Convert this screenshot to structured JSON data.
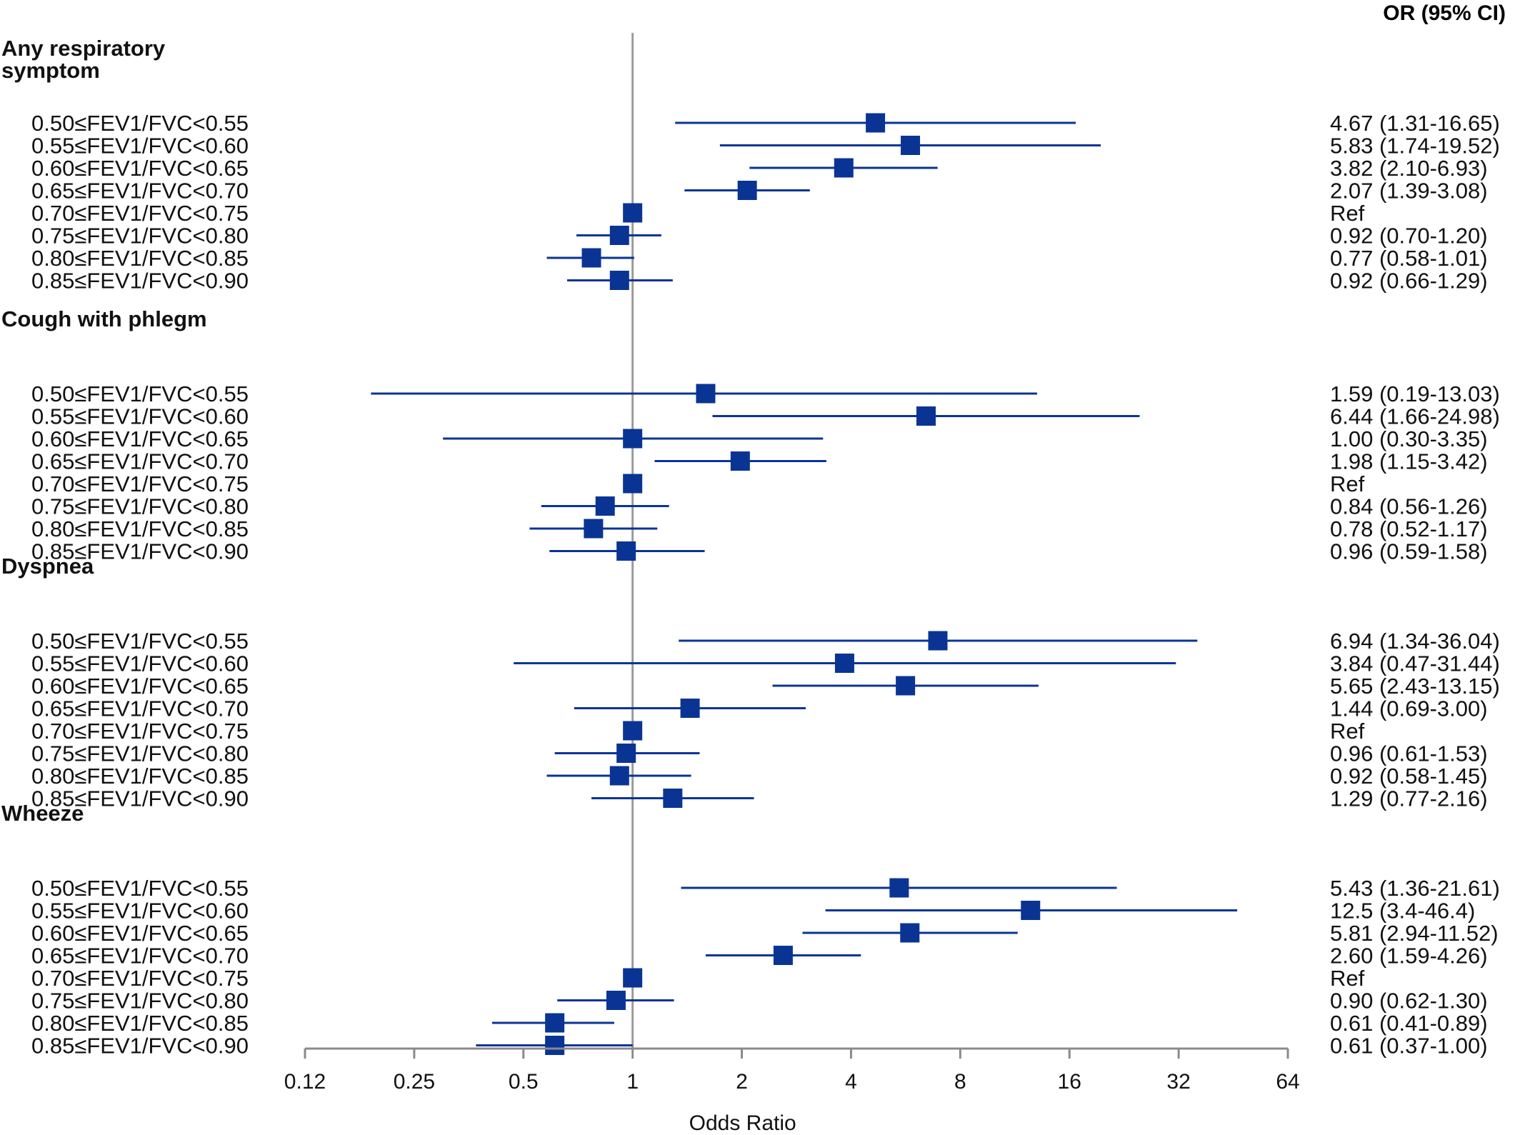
{
  "chart_data": {
    "type": "forest",
    "xlabel": "Odds Ratio",
    "x_scale": "log2",
    "xlim": [
      0.12,
      64
    ],
    "x_ticks": [
      {
        "value": 0.125,
        "label": "0.12"
      },
      {
        "value": 0.25,
        "label": "0.25"
      },
      {
        "value": 0.5,
        "label": "0.5"
      },
      {
        "value": 1,
        "label": "1"
      },
      {
        "value": 2,
        "label": "2"
      },
      {
        "value": 4,
        "label": "4"
      },
      {
        "value": 8,
        "label": "8"
      },
      {
        "value": 16,
        "label": "16"
      },
      {
        "value": 32,
        "label": "32"
      },
      {
        "value": 64,
        "label": "64"
      }
    ],
    "reference_line": 1,
    "estimate_header": "OR (95% CI)",
    "marker_color": "#0a3494",
    "reference_line_color": "#9a9a9a",
    "groups": [
      {
        "title_lines": [
          "Any respiratory",
          "symptom"
        ],
        "rows": [
          {
            "label": "0.50≤FEV1/FVC<0.55",
            "or": 4.67,
            "lo": 1.31,
            "hi": 16.65,
            "text": "4.67 (1.31-16.65)"
          },
          {
            "label": "0.55≤FEV1/FVC<0.60",
            "or": 5.83,
            "lo": 1.74,
            "hi": 19.52,
            "text": "5.83 (1.74-19.52)"
          },
          {
            "label": "0.60≤FEV1/FVC<0.65",
            "or": 3.82,
            "lo": 2.1,
            "hi": 6.93,
            "text": "3.82 (2.10-6.93)"
          },
          {
            "label": "0.65≤FEV1/FVC<0.70",
            "or": 2.07,
            "lo": 1.39,
            "hi": 3.08,
            "text": "2.07 (1.39-3.08)"
          },
          {
            "label": "0.70≤FEV1/FVC<0.75",
            "or": 1,
            "lo": null,
            "hi": null,
            "text": "Ref"
          },
          {
            "label": "0.75≤FEV1/FVC<0.80",
            "or": 0.92,
            "lo": 0.7,
            "hi": 1.2,
            "text": "0.92 (0.70-1.20)"
          },
          {
            "label": "0.80≤FEV1/FVC<0.85",
            "or": 0.77,
            "lo": 0.58,
            "hi": 1.01,
            "text": "0.77 (0.58-1.01)"
          },
          {
            "label": "0.85≤FEV1/FVC<0.90",
            "or": 0.92,
            "lo": 0.66,
            "hi": 1.29,
            "text": "0.92 (0.66-1.29)"
          }
        ]
      },
      {
        "title_lines": [
          "Cough with phlegm"
        ],
        "rows": [
          {
            "label": "0.50≤FEV1/FVC<0.55",
            "or": 1.59,
            "lo": 0.19,
            "hi": 13.03,
            "text": "1.59 (0.19-13.03)"
          },
          {
            "label": "0.55≤FEV1/FVC<0.60",
            "or": 6.44,
            "lo": 1.66,
            "hi": 24.98,
            "text": "6.44 (1.66-24.98)"
          },
          {
            "label": "0.60≤FEV1/FVC<0.65",
            "or": 1.0,
            "lo": 0.3,
            "hi": 3.35,
            "text": "1.00 (0.30-3.35)"
          },
          {
            "label": "0.65≤FEV1/FVC<0.70",
            "or": 1.98,
            "lo": 1.15,
            "hi": 3.42,
            "text": "1.98 (1.15-3.42)"
          },
          {
            "label": "0.70≤FEV1/FVC<0.75",
            "or": 1,
            "lo": null,
            "hi": null,
            "text": "Ref"
          },
          {
            "label": "0.75≤FEV1/FVC<0.80",
            "or": 0.84,
            "lo": 0.56,
            "hi": 1.26,
            "text": "0.84 (0.56-1.26)"
          },
          {
            "label": "0.80≤FEV1/FVC<0.85",
            "or": 0.78,
            "lo": 0.52,
            "hi": 1.17,
            "text": "0.78 (0.52-1.17)"
          },
          {
            "label": "0.85≤FEV1/FVC<0.90",
            "or": 0.96,
            "lo": 0.59,
            "hi": 1.58,
            "text": "0.96 (0.59-1.58)"
          }
        ]
      },
      {
        "title_lines": [
          "Dyspnea"
        ],
        "rows": [
          {
            "label": "0.50≤FEV1/FVC<0.55",
            "or": 6.94,
            "lo": 1.34,
            "hi": 36.04,
            "text": "6.94 (1.34-36.04)"
          },
          {
            "label": "0.55≤FEV1/FVC<0.60",
            "or": 3.84,
            "lo": 0.47,
            "hi": 31.44,
            "text": "3.84 (0.47-31.44)"
          },
          {
            "label": "0.60≤FEV1/FVC<0.65",
            "or": 5.65,
            "lo": 2.43,
            "hi": 13.15,
            "text": "5.65 (2.43-13.15)"
          },
          {
            "label": "0.65≤FEV1/FVC<0.70",
            "or": 1.44,
            "lo": 0.69,
            "hi": 3.0,
            "text": "1.44 (0.69-3.00)"
          },
          {
            "label": "0.70≤FEV1/FVC<0.75",
            "or": 1,
            "lo": null,
            "hi": null,
            "text": "Ref"
          },
          {
            "label": "0.75≤FEV1/FVC<0.80",
            "or": 0.96,
            "lo": 0.61,
            "hi": 1.53,
            "text": "0.96 (0.61-1.53)"
          },
          {
            "label": "0.80≤FEV1/FVC<0.85",
            "or": 0.92,
            "lo": 0.58,
            "hi": 1.45,
            "text": "0.92 (0.58-1.45)"
          },
          {
            "label": "0.85≤FEV1/FVC<0.90",
            "or": 1.29,
            "lo": 0.77,
            "hi": 2.16,
            "text": "1.29 (0.77-2.16)"
          }
        ]
      },
      {
        "title_lines": [
          "Wheeze"
        ],
        "rows": [
          {
            "label": "0.50≤FEV1/FVC<0.55",
            "or": 5.43,
            "lo": 1.36,
            "hi": 21.61,
            "text": "5.43 (1.36-21.61)"
          },
          {
            "label": "0.55≤FEV1/FVC<0.60",
            "or": 12.5,
            "lo": 3.4,
            "hi": 46.4,
            "text": "12.5 (3.4-46.4)"
          },
          {
            "label": "0.60≤FEV1/FVC<0.65",
            "or": 5.81,
            "lo": 2.94,
            "hi": 11.52,
            "text": "5.81 (2.94-11.52)"
          },
          {
            "label": "0.65≤FEV1/FVC<0.70",
            "or": 2.6,
            "lo": 1.59,
            "hi": 4.26,
            "text": "2.60 (1.59-4.26)"
          },
          {
            "label": "0.70≤FEV1/FVC<0.75",
            "or": 1,
            "lo": null,
            "hi": null,
            "text": "Ref"
          },
          {
            "label": "0.75≤FEV1/FVC<0.80",
            "or": 0.9,
            "lo": 0.62,
            "hi": 1.3,
            "text": "0.90 (0.62-1.30)"
          },
          {
            "label": "0.80≤FEV1/FVC<0.85",
            "or": 0.61,
            "lo": 0.41,
            "hi": 0.89,
            "text": "0.61 (0.41-0.89)"
          },
          {
            "label": "0.85≤FEV1/FVC<0.90",
            "or": 0.61,
            "lo": 0.37,
            "hi": 1.0,
            "text": "0.61 (0.37-1.00)"
          }
        ]
      }
    ]
  }
}
